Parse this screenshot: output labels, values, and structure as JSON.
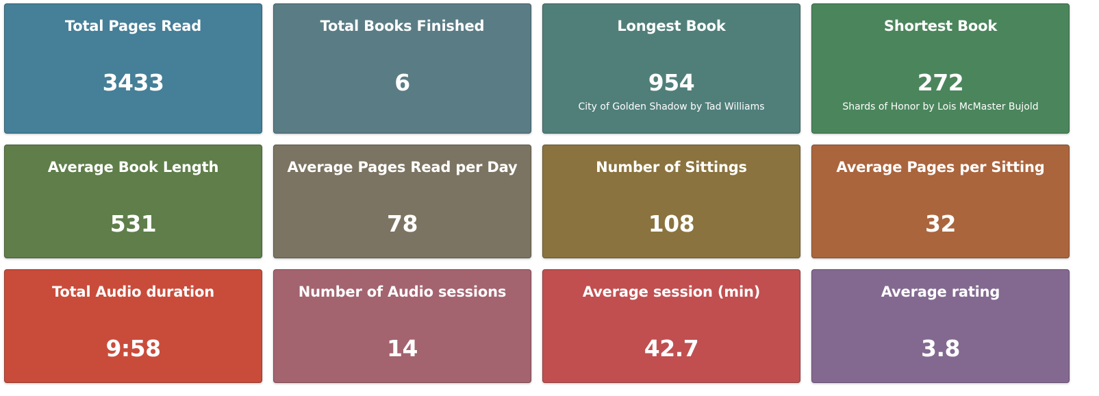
{
  "tiles": [
    {
      "title": "Total Pages Read",
      "value": "3433",
      "sub": "",
      "color": "#457f98"
    },
    {
      "title": "Total Books Finished",
      "value": "6",
      "sub": "",
      "color": "#5a7c85"
    },
    {
      "title": "Longest Book",
      "value": "954",
      "sub": "City of Golden Shadow by Tad Williams",
      "color": "#507f7a"
    },
    {
      "title": "Shortest Book",
      "value": "272",
      "sub": "Shards of Honor by Lois McMaster Bujold",
      "color": "#4b855c"
    },
    {
      "title": "Average Book Length",
      "value": "531",
      "sub": "",
      "color": "#5f7e4a"
    },
    {
      "title": "Average Pages Read per Day",
      "value": "78",
      "sub": "",
      "color": "#7c7462"
    },
    {
      "title": "Number of Sittings",
      "value": "108",
      "sub": "",
      "color": "#8a733e"
    },
    {
      "title": "Average Pages per Sitting",
      "value": "32",
      "sub": "",
      "color": "#aa653d"
    },
    {
      "title": "Total Audio duration",
      "value": "9:58",
      "sub": "",
      "color": "#c94c3b"
    },
    {
      "title": "Number of Audio sessions",
      "value": "14",
      "sub": "",
      "color": "#a3636f"
    },
    {
      "title": "Average session (min)",
      "value": "42.7",
      "sub": "",
      "color": "#c14f50"
    },
    {
      "title": "Average rating",
      "value": "3.8",
      "sub": "",
      "color": "#836990"
    }
  ]
}
